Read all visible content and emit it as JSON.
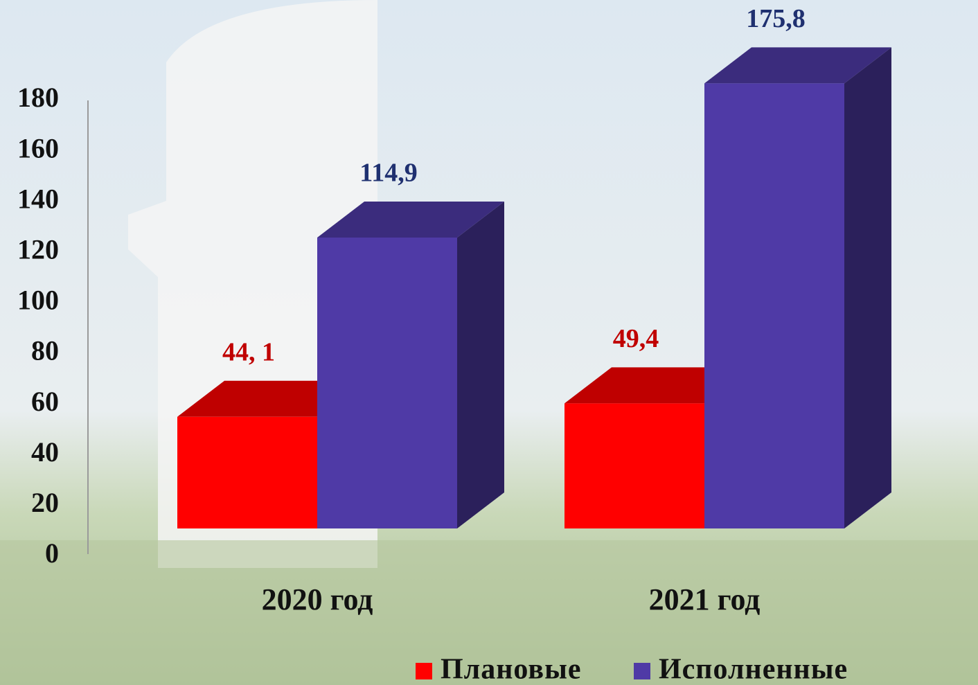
{
  "chart_data": {
    "type": "bar3d",
    "categories": [
      "2020 год",
      "2021 год"
    ],
    "series": [
      {
        "name": "Плановые",
        "color": "#ff0000",
        "values": [
          44.1,
          49.4
        ],
        "value_labels": [
          "44, 1",
          "49,4"
        ]
      },
      {
        "name": "Исполненные",
        "color": "#4f3aa6",
        "values": [
          114.9,
          175.8
        ],
        "value_labels": [
          "114,9",
          "175,8"
        ]
      }
    ],
    "ylim": [
      0,
      180
    ],
    "yticks": [
      0,
      20,
      40,
      60,
      80,
      100,
      120,
      140,
      160,
      180
    ],
    "grid": false,
    "legend": "bottom"
  }
}
